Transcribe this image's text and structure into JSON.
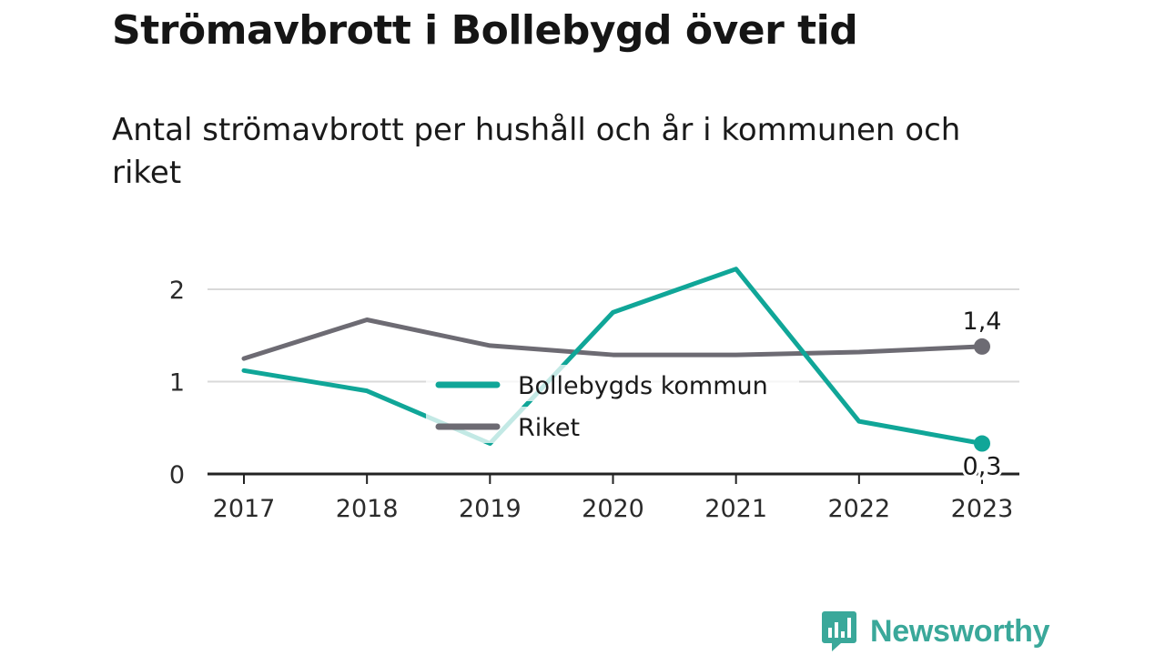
{
  "title": "Strömavbrott i Bollebygd över tid",
  "subtitle": "Antal strömavbrott per hushåll och år i kommunen och riket",
  "brand": {
    "name": "Newsworthy",
    "icon": "newsworthy-logo-icon",
    "color": "#3aa89a"
  },
  "colors": {
    "kommun": "#10a698",
    "riket": "#6d6b73",
    "grid": "#d9d9d9",
    "axis": "#222222"
  },
  "chart_data": {
    "type": "line",
    "x": [
      "2017",
      "2018",
      "2019",
      "2020",
      "2021",
      "2022",
      "2023"
    ],
    "yticks": [
      "0",
      "1",
      "2"
    ],
    "ylim": [
      0,
      2.3
    ],
    "grid": true,
    "legend": "center",
    "series": [
      {
        "name": "Bollebygds kommun",
        "values": [
          1.12,
          0.9,
          0.33,
          1.75,
          2.22,
          0.57,
          0.33
        ],
        "end_label": "0,3"
      },
      {
        "name": "Riket",
        "values": [
          1.25,
          1.67,
          1.39,
          1.29,
          1.29,
          1.32,
          1.38
        ],
        "end_label": "1,4"
      }
    ]
  }
}
